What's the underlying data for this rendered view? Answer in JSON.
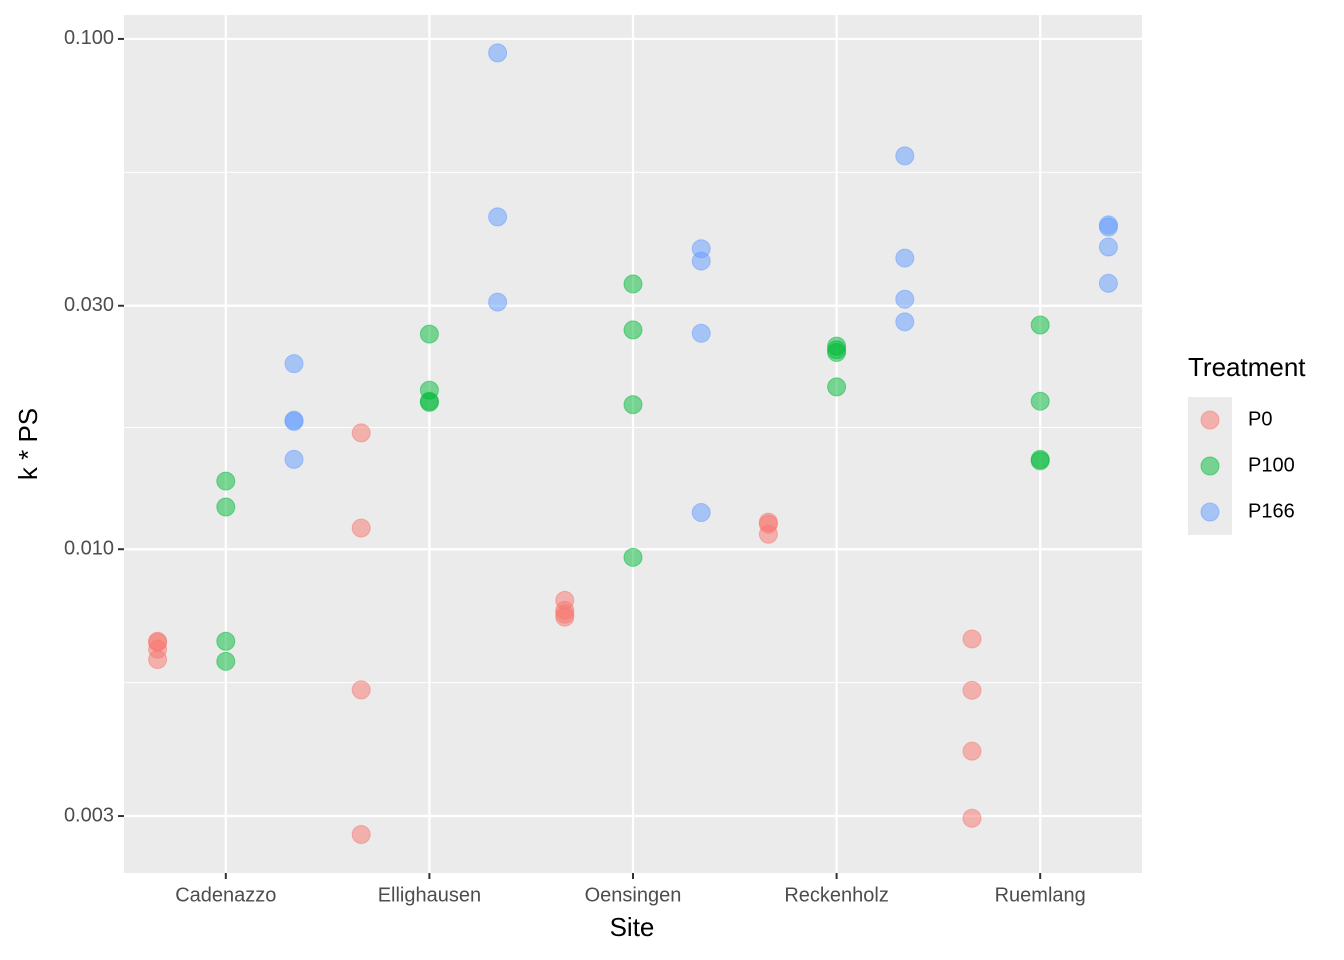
{
  "chart_data": {
    "type": "scatter",
    "x_label": "Site",
    "y_label": "k * PS",
    "legend_title": "Treatment",
    "categories": [
      "Cadenazzo",
      "Ellighausen",
      "Oensingen",
      "Reckenholz",
      "Ruemlang"
    ],
    "log_y": true,
    "grid": true,
    "legend": "right",
    "ylim": [
      0.00232,
      0.1114
    ],
    "yticks": [
      0.003,
      {
        "value": 0.01,
        "label": "0.010"
      },
      {
        "value": 0.03,
        "label": "0.030"
      },
      {
        "value": 0.1,
        "label": "0.100"
      }
    ],
    "series": [
      {
        "name": "P0",
        "color": "#F8766D",
        "x": [
          "Cadenazzo",
          "Cadenazzo",
          "Cadenazzo",
          "Cadenazzo",
          "Ellighausen",
          "Ellighausen",
          "Ellighausen",
          "Ellighausen",
          "Oensingen",
          "Oensingen",
          "Oensingen",
          "Oensingen",
          "Reckenholz",
          "Reckenholz",
          "Reckenholz",
          "Ruemlang",
          "Ruemlang",
          "Ruemlang",
          "Ruemlang"
        ],
        "values": [
          0.0066,
          0.00657,
          0.00637,
          0.00608,
          0.0169,
          0.011,
          0.0053,
          0.00276,
          0.00794,
          0.00759,
          0.00746,
          0.00736,
          0.0113,
          0.0112,
          0.0107,
          0.00667,
          0.00529,
          0.00402,
          0.00297
        ]
      },
      {
        "name": "P100",
        "color": "#00BA38",
        "x": [
          "Cadenazzo",
          "Cadenazzo",
          "Cadenazzo",
          "Cadenazzo",
          "Ellighausen",
          "Ellighausen",
          "Ellighausen",
          "Ellighausen",
          "Oensingen",
          "Oensingen",
          "Oensingen",
          "Oensingen",
          "Reckenholz",
          "Reckenholz",
          "Reckenholz",
          "Reckenholz",
          "Ruemlang",
          "Ruemlang",
          "Ruemlang",
          "Ruemlang"
        ],
        "values": [
          0.0136,
          0.0121,
          0.0066,
          0.00603,
          0.0264,
          0.0205,
          0.0195,
          0.0194,
          0.0331,
          0.0269,
          0.0192,
          0.00964,
          0.025,
          0.0246,
          0.0243,
          0.0208,
          0.0275,
          0.0195,
          0.015,
          0.0149
        ]
      },
      {
        "name": "P166",
        "color": "#619CFF",
        "x": [
          "Cadenazzo",
          "Cadenazzo",
          "Cadenazzo",
          "Cadenazzo",
          "Ellighausen",
          "Ellighausen",
          "Ellighausen",
          "Oensingen",
          "Oensingen",
          "Oensingen",
          "Oensingen",
          "Reckenholz",
          "Reckenholz",
          "Reckenholz",
          "Reckenholz",
          "Ruemlang",
          "Ruemlang",
          "Ruemlang",
          "Ruemlang"
        ],
        "values": [
          0.0231,
          0.0179,
          0.0178,
          0.015,
          0.0939,
          0.0448,
          0.0305,
          0.0388,
          0.0367,
          0.0265,
          0.0118,
          0.059,
          0.0372,
          0.0309,
          0.0279,
          0.0432,
          0.0428,
          0.0391,
          0.0332
        ]
      }
    ]
  }
}
